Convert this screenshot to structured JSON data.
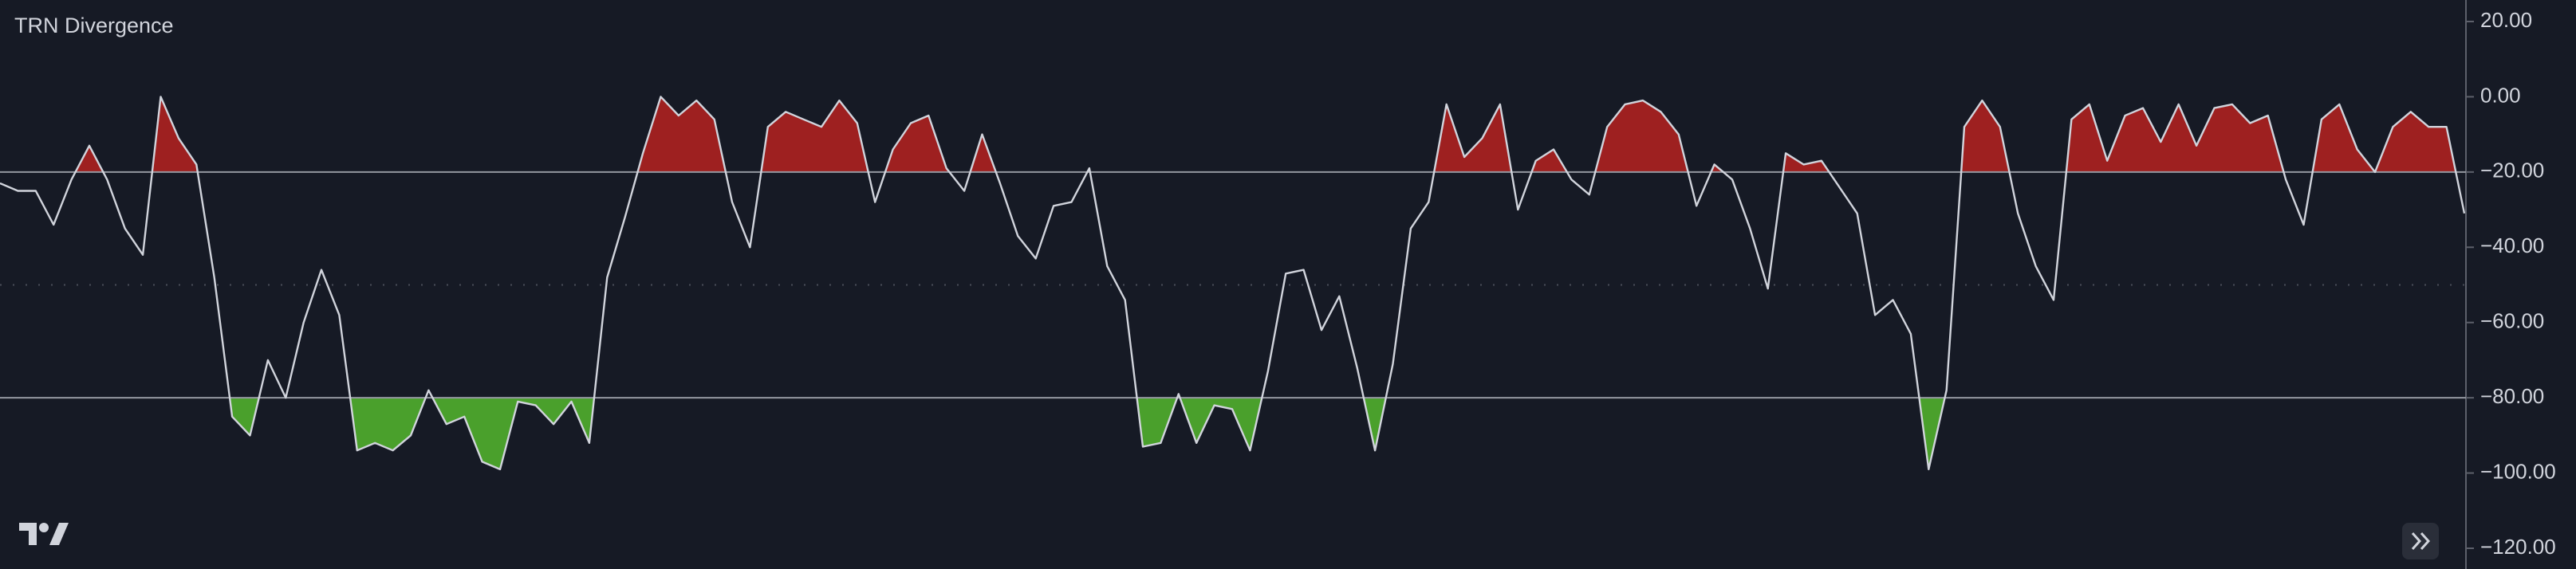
{
  "chart_data": {
    "type": "line",
    "title": "TRN Divergence",
    "values": [
      -23,
      -25,
      -25,
      -34,
      -22,
      -13,
      -22,
      -35,
      -42,
      0,
      -11,
      -18,
      -48,
      -85,
      -90,
      -70,
      -80,
      -60,
      -46,
      -58,
      -94,
      -92,
      -94,
      -90,
      -78,
      -87,
      -85,
      -97,
      -99,
      -81,
      -82,
      -87,
      -81,
      -92,
      -48,
      -32,
      -15,
      0,
      -5,
      -1,
      -6,
      -28,
      -40,
      -8,
      -4,
      -6,
      -8,
      -1,
      -7,
      -28,
      -14,
      -7,
      -5,
      -19,
      -25,
      -10,
      -23,
      -37,
      -43,
      -29,
      -28,
      -19,
      -45,
      -54,
      -93,
      -92,
      -79,
      -92,
      -82,
      -83,
      -94,
      -73,
      -47,
      -46,
      -62,
      -53,
      -72,
      -94,
      -71,
      -35,
      -28,
      -2,
      -16,
      -11,
      -2,
      -30,
      -17,
      -14,
      -22,
      -26,
      -8,
      -2,
      -1,
      -4,
      -10,
      -29,
      -18,
      -22,
      -35,
      -51,
      -15,
      -18,
      -17,
      -24,
      -31,
      -58,
      -54,
      -63,
      -99,
      -78,
      -8,
      -1,
      -8,
      -31,
      -45,
      -54,
      -6,
      -2,
      -17,
      -5,
      -3,
      -12,
      -2,
      -13,
      -3,
      -2,
      -7,
      -5,
      -22,
      -34,
      -6,
      -2,
      -14,
      -20,
      -8,
      -4,
      -8,
      -8,
      -31
    ],
    "color": "#d1d4dc",
    "upper_band": -20,
    "lower_band": -80,
    "mid_line": -50,
    "upper_fill_color": "#9e2020",
    "lower_fill_color": "#4aa02c",
    "ylim": [
      -120,
      20
    ],
    "yticks": [
      {
        "value": 20,
        "label": "20.00"
      },
      {
        "value": 0,
        "label": "0.00"
      },
      {
        "value": -20,
        "label": "−20.00"
      },
      {
        "value": -40,
        "label": "−40.00"
      },
      {
        "value": -60,
        "label": "−60.00"
      },
      {
        "value": -80,
        "label": "−80.00"
      },
      {
        "value": -100,
        "label": "−100.00"
      },
      {
        "value": -120,
        "label": "−120.00"
      }
    ]
  }
}
